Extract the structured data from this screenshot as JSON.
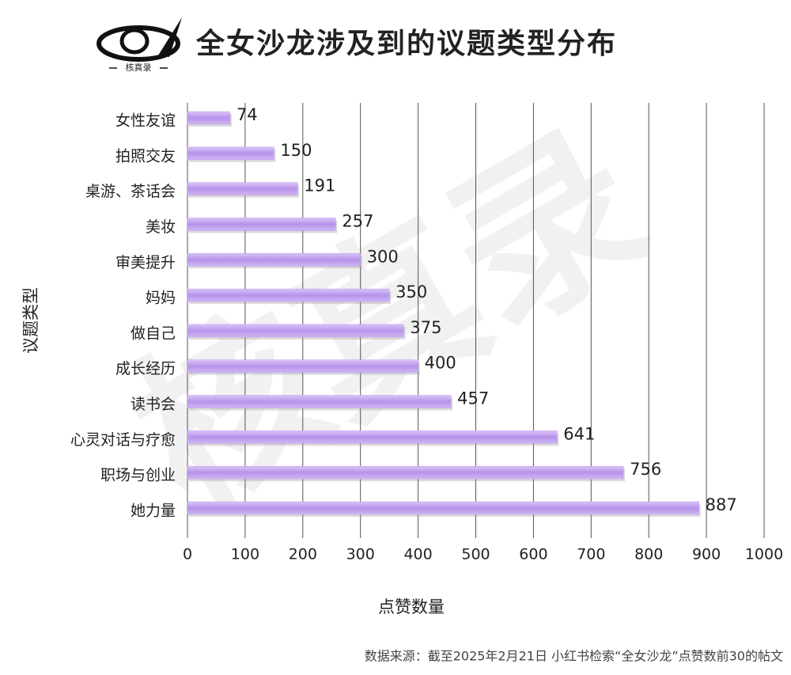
{
  "logo_text": "核真录",
  "watermark": "核真录",
  "chart_data": {
    "type": "hbar",
    "title": "全女沙龙涉及到的议题类型分布",
    "y_label": "议题类型",
    "x_label": "点赞数量",
    "source": "数据来源：截至2025年2月21日 小红书检索“全女沙龙”点赞数前30的帖文",
    "categories": [
      "女性友谊",
      "拍照交友",
      "桌游、茶话会",
      "美妆",
      "审美提升",
      "妈妈",
      "做自己",
      "成长经历",
      "读书会",
      "心灵对话与疗愈",
      "职场与创业",
      "她力量"
    ],
    "values": [
      74,
      150,
      191,
      257,
      300,
      350,
      375,
      400,
      457,
      641,
      756,
      887
    ],
    "color": "#bf9cee",
    "xlim": [
      0,
      1000
    ],
    "xticks": [
      0,
      100,
      200,
      300,
      400,
      500,
      600,
      700,
      800,
      900,
      1000
    ],
    "grid": true
  }
}
